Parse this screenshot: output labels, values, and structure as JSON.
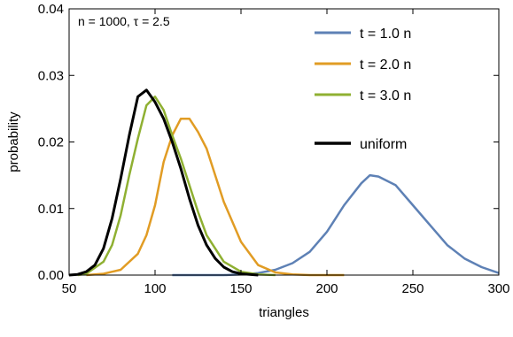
{
  "chart_data": {
    "type": "line",
    "title": "",
    "annotation": "n = 1000, τ = 2.5",
    "xlabel": "triangles",
    "ylabel": "probability",
    "xlim": [
      50,
      300
    ],
    "ylim": [
      0,
      0.04
    ],
    "x_ticks": [
      50,
      100,
      150,
      200,
      250,
      300
    ],
    "x_tick_labels": [
      "50",
      "100",
      "150",
      "200",
      "250",
      "300"
    ],
    "y_ticks": [
      0,
      0.01,
      0.02,
      0.03,
      0.04
    ],
    "y_tick_labels": [
      "0.00",
      "0.01",
      "0.02",
      "0.03",
      "0.04"
    ],
    "grid": false,
    "legend_position": "top-right",
    "series": [
      {
        "name": "t = 1.0 n",
        "color": "#5e81b5",
        "x": [
          110,
          125,
          140,
          150,
          160,
          170,
          180,
          190,
          200,
          210,
          220,
          225,
          230,
          240,
          250,
          260,
          270,
          280,
          290,
          300
        ],
        "y": [
          0,
          0,
          0,
          0.0001,
          0.0003,
          0.0008,
          0.0018,
          0.0035,
          0.0065,
          0.0105,
          0.0138,
          0.015,
          0.0148,
          0.0135,
          0.0105,
          0.0075,
          0.0045,
          0.0025,
          0.0012,
          0.0003
        ]
      },
      {
        "name": "t = 2.0 n",
        "color": "#e19c24",
        "x": [
          60,
          70,
          80,
          90,
          95,
          100,
          105,
          110,
          115,
          120,
          125,
          130,
          135,
          140,
          150,
          160,
          170,
          180,
          190,
          210
        ],
        "y": [
          0,
          0.0002,
          0.0008,
          0.0032,
          0.006,
          0.0105,
          0.017,
          0.021,
          0.0235,
          0.0235,
          0.0215,
          0.019,
          0.015,
          0.011,
          0.005,
          0.0015,
          0.0004,
          0.0001,
          0,
          0
        ]
      },
      {
        "name": "t = 3.0 n",
        "color": "#8fb032",
        "x": [
          55,
          60,
          70,
          75,
          80,
          85,
          90,
          95,
          100,
          105,
          110,
          115,
          120,
          125,
          130,
          140,
          150,
          160,
          170
        ],
        "y": [
          0,
          0.0002,
          0.002,
          0.0045,
          0.009,
          0.015,
          0.0205,
          0.0255,
          0.0268,
          0.0248,
          0.021,
          0.0175,
          0.0135,
          0.0095,
          0.006,
          0.002,
          0.0005,
          0.0001,
          0
        ]
      },
      {
        "name": "uniform",
        "color": "#000000",
        "x": [
          50,
          55,
          60,
          65,
          70,
          75,
          80,
          85,
          90,
          95,
          100,
          105,
          110,
          115,
          120,
          125,
          130,
          135,
          140,
          145,
          150,
          160
        ],
        "y": [
          0,
          0.0001,
          0.0005,
          0.0015,
          0.004,
          0.0085,
          0.0145,
          0.021,
          0.0268,
          0.0278,
          0.026,
          0.0235,
          0.02,
          0.016,
          0.0115,
          0.0075,
          0.0045,
          0.0025,
          0.0012,
          0.0005,
          0.0002,
          0
        ]
      }
    ]
  }
}
